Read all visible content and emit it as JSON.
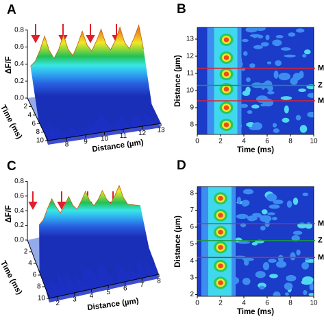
{
  "chart_data": [
    {
      "type": "surface",
      "panel": "A",
      "xlabel": "Distance (µm)",
      "ylabel": "Time (ms)",
      "zlabel": "ΔF/F",
      "x": [
        7,
        7.25,
        7.5,
        7.75,
        8,
        8.25,
        8.5,
        8.75,
        9,
        9.25,
        9.5,
        9.75,
        10,
        10.25,
        10.5,
        10.75,
        11,
        11.25,
        11.5,
        11.75,
        12,
        12.25,
        12.5,
        12.75,
        13
      ],
      "values": [
        0.45,
        0.5,
        0.62,
        0.78,
        0.6,
        0.5,
        0.6,
        0.76,
        0.58,
        0.5,
        0.62,
        0.77,
        0.6,
        0.52,
        0.63,
        0.76,
        0.58,
        0.5,
        0.6,
        0.75,
        0.56,
        0.48,
        0.6,
        0.74,
        0.45
      ],
      "xlim": [
        7,
        13
      ],
      "xticks": [
        8,
        9,
        10,
        11,
        12,
        13
      ],
      "ylim": [
        0,
        10
      ],
      "yticks": [
        2,
        4,
        6,
        8,
        10
      ],
      "zlim": [
        0,
        0.8
      ],
      "zticks": [
        {
          "value": 0,
          "label": "0.0"
        },
        0.2,
        0.4,
        0.6,
        0.8
      ]
    },
    {
      "type": "contour",
      "panel": "B",
      "xlabel": "Time (ms)",
      "ylabel": "Distance (µm)",
      "x": [
        2.5,
        2.5,
        2.5,
        2.5,
        2.5,
        2.5
      ],
      "y": [
        12.96,
        11.92,
        10.96,
        10.08,
        9.0,
        8.0
      ],
      "xlim": [
        0,
        10
      ],
      "xticks": [
        0,
        2,
        4,
        6,
        8,
        10
      ],
      "ylim": [
        7.44,
        13.68
      ],
      "yticks": [
        8,
        9,
        10,
        11,
        12,
        13
      ],
      "lines": [
        {
          "label": "M",
          "value": 11.3,
          "color": "#e0202a"
        },
        {
          "label": "Z",
          "value": 10.3,
          "color": "#1a9a3a"
        },
        {
          "label": "M",
          "value": 9.4,
          "color": "#e0202a"
        }
      ]
    },
    {
      "type": "surface",
      "panel": "C",
      "xlabel": "Distance (µm)",
      "ylabel": "Time (ms)",
      "zlabel": "ΔF/F",
      "x": [
        2,
        2.25,
        2.5,
        2.75,
        3,
        3.25,
        3.5,
        3.75,
        4,
        4.25,
        4.5,
        4.75,
        5,
        5.25,
        5.5,
        5.75,
        6,
        6.25,
        6.5,
        6.75,
        7,
        7.25,
        7.5,
        7.75,
        8
      ],
      "values": [
        0.3,
        0.36,
        0.5,
        0.62,
        0.5,
        0.4,
        0.48,
        0.6,
        0.47,
        0.4,
        0.5,
        0.62,
        0.48,
        0.4,
        0.47,
        0.58,
        0.45,
        0.38,
        0.48,
        0.6,
        0.42,
        0.32,
        0.3,
        0.28,
        0.26
      ],
      "xlim": [
        1.5,
        8
      ],
      "xticks": [
        2,
        3,
        4,
        5,
        6,
        7,
        8
      ],
      "ylim": [
        0,
        10
      ],
      "yticks": [
        2,
        4,
        6,
        8,
        10
      ],
      "zlim": [
        0,
        0.8
      ],
      "zticks": [
        {
          "value": 0,
          "label": "0.0"
        },
        0.2,
        0.4,
        0.6,
        0.8
      ]
    },
    {
      "type": "contour",
      "panel": "D",
      "xlabel": "Time (ms)",
      "ylabel": "Distance (µm)",
      "x": [
        2.0,
        2.0,
        2.0,
        2.0,
        2.0,
        2.0
      ],
      "y": [
        7.7,
        6.7,
        5.7,
        4.8,
        3.7,
        2.7
      ],
      "xlim": [
        0,
        10
      ],
      "xticks": [
        0,
        2,
        4,
        6,
        8,
        10
      ],
      "ylim": [
        1.9,
        8.4
      ],
      "yticks": [
        2,
        3,
        4,
        5,
        6,
        7,
        8
      ],
      "lines": [
        {
          "label": "M",
          "value": 6.2,
          "color": "#e0202a"
        },
        {
          "label": "Z",
          "value": 5.2,
          "color": "#1a9a3a"
        },
        {
          "label": "M",
          "value": 4.2,
          "color": "#e0202a"
        }
      ]
    }
  ]
}
